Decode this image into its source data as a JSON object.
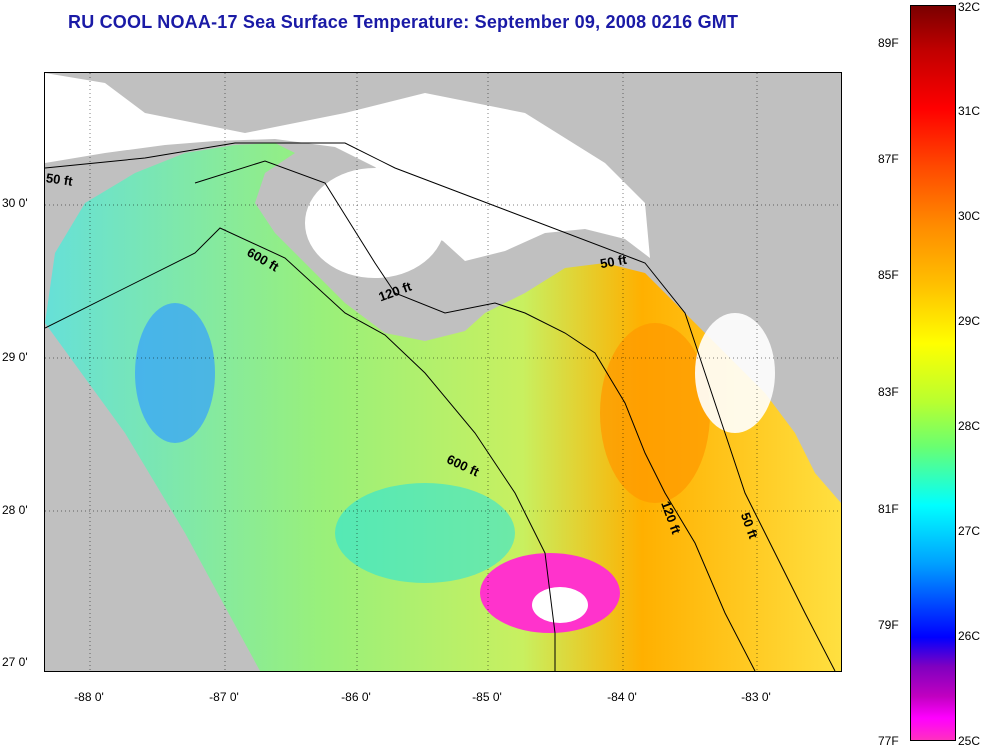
{
  "title": "RU COOL  NOAA-17  Sea Surface Temperature:  September 09, 2008 0216 GMT",
  "lat_labels": [
    "30 0'",
    "29 0'",
    "28 0'",
    "27 0'"
  ],
  "lon_labels": [
    "-88 0'",
    "-87 0'",
    "-86 0'",
    "-85 0'",
    "-84 0'",
    "-83 0'"
  ],
  "contour_labels": [
    "50 ft",
    "600 ft",
    "120 ft",
    "50 ft",
    "600 ft",
    "120 ft",
    "50 ft"
  ],
  "colorbar": {
    "fahrenheit": [
      "89F",
      "87F",
      "85F",
      "83F",
      "81F",
      "79F",
      "77F"
    ],
    "celsius": [
      "32C",
      "31C",
      "30C",
      "29C",
      "28C",
      "27C",
      "26C",
      "25C"
    ]
  },
  "colors": {
    "title": "#1a1aa6",
    "land": "#c0c0c0",
    "cloud": "#ffffff",
    "warm": "#ff9900",
    "mid": "#aaff55",
    "cool": "#00e0ff",
    "cold": "#ff33cc"
  }
}
